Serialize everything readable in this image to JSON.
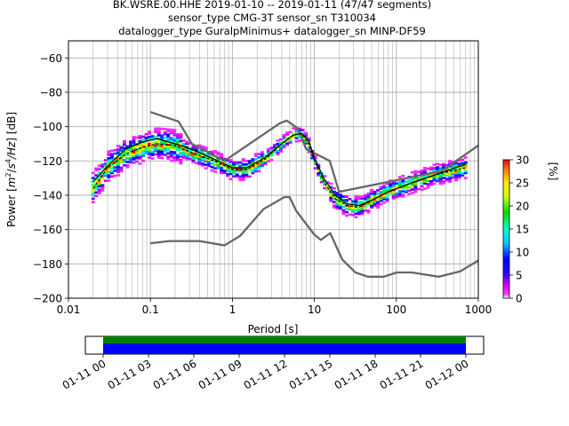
{
  "chart_data": {
    "type": "heatmap",
    "title_lines": [
      "BK.WSRE.00.HHE   2019-01-10 -- 2019-01-11  (47/47 segments)",
      "sensor_type CMG-3T sensor_sn T310034",
      "datalogger_type GuralpMinimus+ datalogger_sn MINP-DF59"
    ],
    "xlabel": "Period [s]",
    "ylabel_parts": [
      "Power [",
      "m",
      "2",
      "/",
      "s",
      "4",
      "/Hz",
      "] [dB]"
    ],
    "xscale": "log",
    "xlim": [
      0.01,
      1000
    ],
    "ylim": [
      -200,
      -50
    ],
    "xticks": [
      {
        "v": 0.01,
        "label": "0.01"
      },
      {
        "v": 0.1,
        "label": "0.1"
      },
      {
        "v": 1,
        "label": "1"
      },
      {
        "v": 10,
        "label": "10"
      },
      {
        "v": 100,
        "label": "100"
      },
      {
        "v": 1000,
        "label": "1000"
      }
    ],
    "yticks": [
      {
        "v": -60,
        "label": "−60"
      },
      {
        "v": -80,
        "label": "−80"
      },
      {
        "v": -100,
        "label": "−100"
      },
      {
        "v": -120,
        "label": "−120"
      },
      {
        "v": -140,
        "label": "−140"
      },
      {
        "v": -160,
        "label": "−160"
      },
      {
        "v": -180,
        "label": "−180"
      },
      {
        "v": -200,
        "label": "−200"
      }
    ],
    "grid": true,
    "colorbar": {
      "label": "[%]",
      "range": [
        0,
        30
      ],
      "ticks": [
        {
          "v": 0,
          "label": "0"
        },
        {
          "v": 5,
          "label": "5"
        },
        {
          "v": 10,
          "label": "10"
        },
        {
          "v": 15,
          "label": "15"
        },
        {
          "v": 20,
          "label": "20"
        },
        {
          "v": 25,
          "label": "25"
        },
        {
          "v": 30,
          "label": "30"
        }
      ]
    },
    "series": [
      {
        "role": "high_noise_model",
        "color": "#666666",
        "points": [
          [
            0.1,
            -91.5
          ],
          [
            0.22,
            -97
          ],
          [
            0.32,
            -110
          ],
          [
            0.8,
            -120
          ],
          [
            3.8,
            -98
          ],
          [
            4.6,
            -96.5
          ],
          [
            6.3,
            -101
          ],
          [
            7.9,
            -113
          ],
          [
            15.4,
            -120
          ],
          [
            20,
            -138
          ],
          [
            354,
            -126
          ],
          [
            1000,
            -111
          ]
        ]
      },
      {
        "role": "low_noise_model",
        "color": "#666666",
        "points": [
          [
            0.1,
            -168
          ],
          [
            0.17,
            -166.7
          ],
          [
            0.4,
            -166.7
          ],
          [
            0.8,
            -169.2
          ],
          [
            1.24,
            -163.7
          ],
          [
            2.4,
            -148
          ],
          [
            4.3,
            -141.1
          ],
          [
            5.0,
            -141.1
          ],
          [
            6.0,
            -149
          ],
          [
            10,
            -163
          ],
          [
            12,
            -166
          ],
          [
            15.6,
            -162.1
          ],
          [
            21.9,
            -177.5
          ],
          [
            31.6,
            -185
          ],
          [
            45,
            -187.5
          ],
          [
            70,
            -187.5
          ],
          [
            101,
            -185
          ],
          [
            154,
            -185
          ],
          [
            328,
            -187.5
          ],
          [
            600,
            -184.4
          ],
          [
            1000,
            -178
          ]
        ]
      },
      {
        "role": "mean_psd",
        "color": "#000000",
        "points": [
          [
            0.02,
            -132
          ],
          [
            0.03,
            -123
          ],
          [
            0.05,
            -113
          ],
          [
            0.08,
            -109
          ],
          [
            0.12,
            -107
          ],
          [
            0.2,
            -110
          ],
          [
            0.35,
            -114
          ],
          [
            0.6,
            -119
          ],
          [
            1.0,
            -124
          ],
          [
            1.5,
            -124
          ],
          [
            2.5,
            -118
          ],
          [
            4.0,
            -110
          ],
          [
            5.5,
            -105
          ],
          [
            7.0,
            -104
          ],
          [
            8.5,
            -108
          ],
          [
            10,
            -118
          ],
          [
            13,
            -130
          ],
          [
            18,
            -140
          ],
          [
            25,
            -145
          ],
          [
            35,
            -146
          ],
          [
            50,
            -143
          ],
          [
            80,
            -138
          ],
          [
            150,
            -133
          ],
          [
            300,
            -128
          ],
          [
            700,
            -122
          ]
        ]
      },
      {
        "role": "mode_psd",
        "color": "#000000",
        "points": [
          [
            0.02,
            -136
          ],
          [
            0.03,
            -124
          ],
          [
            0.05,
            -116
          ],
          [
            0.08,
            -112
          ],
          [
            0.12,
            -110
          ],
          [
            0.2,
            -111
          ],
          [
            0.35,
            -116
          ],
          [
            0.6,
            -120
          ],
          [
            1.0,
            -125
          ],
          [
            1.5,
            -125
          ],
          [
            2.5,
            -119
          ],
          [
            4.0,
            -110
          ],
          [
            5.5,
            -105
          ],
          [
            7.0,
            -104
          ],
          [
            8.5,
            -110
          ],
          [
            10,
            -120
          ],
          [
            13,
            -132
          ],
          [
            18,
            -142
          ],
          [
            25,
            -146
          ],
          [
            35,
            -147
          ],
          [
            50,
            -143
          ],
          [
            80,
            -138
          ],
          [
            150,
            -133
          ],
          [
            300,
            -128
          ],
          [
            700,
            -124
          ]
        ]
      }
    ],
    "time_axis": {
      "ticks": [
        "01-11 00",
        "01-11 03",
        "01-11 06",
        "01-11 09",
        "01-11 12",
        "01-11 15",
        "01-11 18",
        "01-11 21",
        "01-12 00"
      ],
      "coverage_colors": {
        "data": "#008000",
        "gaps": "#0000ff"
      }
    }
  }
}
